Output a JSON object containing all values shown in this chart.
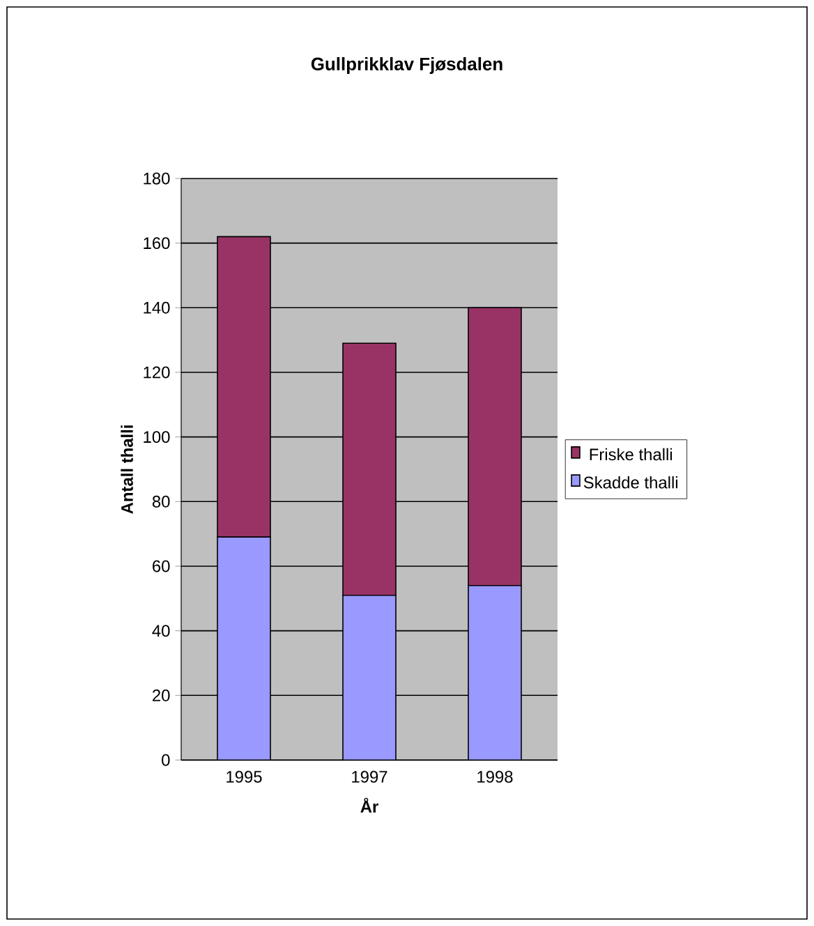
{
  "chart_data": {
    "type": "bar",
    "stacked": true,
    "title": "Gullprikklav Fjøsdalen",
    "xlabel": "År",
    "ylabel": "Antall thalli",
    "categories": [
      "1995",
      "1997",
      "1998"
    ],
    "series": [
      {
        "name": "Skadde thalli",
        "color": "#9999ff",
        "values": [
          69,
          51,
          54
        ]
      },
      {
        "name": "Friske thalli",
        "color": "#993366",
        "values": [
          93,
          78,
          86
        ]
      }
    ],
    "ylim": [
      0,
      180
    ],
    "yticks": [
      0,
      20,
      40,
      60,
      80,
      100,
      120,
      140,
      160,
      180
    ],
    "grid": "y",
    "legend": "right"
  }
}
